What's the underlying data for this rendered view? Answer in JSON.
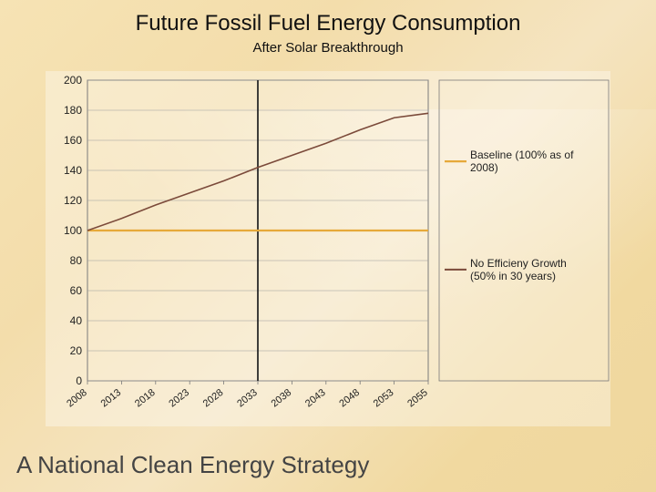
{
  "title": "Future Fossil Fuel Energy Consumption",
  "subtitle": "After Solar Breakthrough",
  "footer": "A National Clean Energy Strategy",
  "chart": {
    "type": "line",
    "background_color": "rgba(255,255,255,0.35)",
    "plot_border_color": "#7a7a7a",
    "grid_color": "#9b9b9b",
    "grid_width": 0.6,
    "axis_font_size": 12,
    "x_labels": [
      "2008",
      "2013",
      "2018",
      "2023",
      "2028",
      "2033",
      "2038",
      "2043",
      "2048",
      "2053",
      "2055"
    ],
    "x_label_rotate_deg": -38,
    "y": {
      "min": 0,
      "max": 200,
      "step": 20
    },
    "divider": {
      "x_value": "2033",
      "color": "#2a2a2a",
      "width": 1.8
    },
    "series": [
      {
        "key": "baseline",
        "label": "Baseline (100% as of 2008)",
        "color": "#e6a93a",
        "width": 2.2,
        "points": [
          {
            "x": "2008",
            "y": 100
          },
          {
            "x": "2013",
            "y": 100
          },
          {
            "x": "2018",
            "y": 100
          },
          {
            "x": "2023",
            "y": 100
          },
          {
            "x": "2028",
            "y": 100
          },
          {
            "x": "2033",
            "y": 100
          },
          {
            "x": "2038",
            "y": 100
          },
          {
            "x": "2043",
            "y": 100
          },
          {
            "x": "2048",
            "y": 100
          },
          {
            "x": "2053",
            "y": 100
          },
          {
            "x": "2055",
            "y": 100
          }
        ]
      },
      {
        "key": "no_efficiency",
        "label": "No Efficieny Growth (50% in 30 years)",
        "color": "#7b4a3a",
        "width": 1.6,
        "points": [
          {
            "x": "2008",
            "y": 100
          },
          {
            "x": "2013",
            "y": 108
          },
          {
            "x": "2018",
            "y": 117
          },
          {
            "x": "2023",
            "y": 125
          },
          {
            "x": "2028",
            "y": 133
          },
          {
            "x": "2033",
            "y": 142
          },
          {
            "x": "2038",
            "y": 150
          },
          {
            "x": "2043",
            "y": 158
          },
          {
            "x": "2048",
            "y": 167
          },
          {
            "x": "2053",
            "y": 175
          },
          {
            "x": "2055",
            "y": 178
          }
        ]
      }
    ],
    "legend": {
      "entries": [
        {
          "series_key": "baseline"
        },
        {
          "series_key": "no_efficiency"
        }
      ]
    }
  }
}
